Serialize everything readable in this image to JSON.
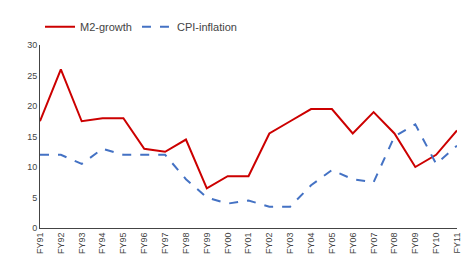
{
  "chart_data": {
    "type": "line",
    "categories": [
      "FY91",
      "FY92",
      "FY93",
      "FY94",
      "FY95",
      "FY96",
      "FY97",
      "FY98",
      "FY99",
      "FY00",
      "FY01",
      "FY02",
      "FY03",
      "FY04",
      "FY05",
      "FY06",
      "FY07",
      "FY08",
      "FY09",
      "FY10",
      "FY11"
    ],
    "series": [
      {
        "name": "M2-growth",
        "color": "#cc0000",
        "line_style": "solid",
        "values": [
          17.5,
          26.0,
          17.5,
          18.0,
          18.0,
          13.0,
          12.5,
          14.5,
          6.5,
          8.5,
          8.5,
          15.5,
          17.5,
          19.5,
          19.5,
          15.5,
          19.0,
          15.5,
          10.0,
          12.0,
          16.0
        ]
      },
      {
        "name": "CPI-inflation",
        "color": "#4472c4",
        "line_style": "dashed",
        "values": [
          12.0,
          12.0,
          10.5,
          13.0,
          12.0,
          12.0,
          12.0,
          8.0,
          5.0,
          4.0,
          4.5,
          3.5,
          3.5,
          7.0,
          9.5,
          8.0,
          7.5,
          15.0,
          17.0,
          10.5,
          13.5
        ]
      }
    ],
    "ylim": [
      0,
      30
    ],
    "yticks": [
      0,
      5,
      10,
      15,
      20,
      25,
      30
    ],
    "grid": false,
    "legend": "upper left"
  }
}
